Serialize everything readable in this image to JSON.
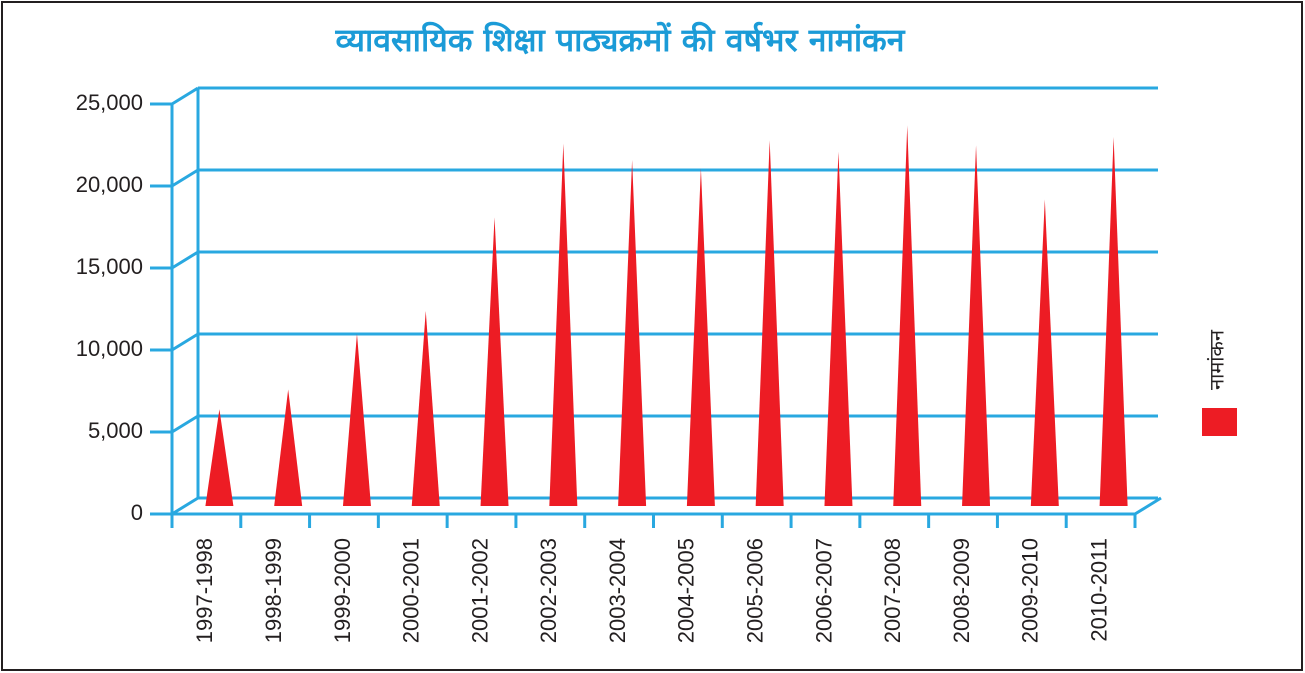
{
  "chart_data": {
    "type": "cone",
    "title": "व्यावसायिक शिक्षा पाठ्यक्रमों की वर्षभर नामांकन",
    "categories": [
      "1997-1998",
      "1998-1999",
      "1999-2000",
      "2000-2001",
      "2001-2002",
      "2002-2003",
      "2003-2004",
      "2004-2005",
      "2005-2006",
      "2006-2007",
      "2007-2008",
      "2008-2009",
      "2009-2010",
      "2010-2011"
    ],
    "series": [
      {
        "name": "नामांकन",
        "color": "#ed1c24",
        "values": [
          5900,
          7100,
          10500,
          11900,
          17600,
          22100,
          21100,
          20600,
          22300,
          21600,
          23200,
          22000,
          18700,
          22500
        ]
      }
    ],
    "ylim": [
      0,
      25000
    ],
    "yticks": [
      0,
      {
        "value": 5000,
        "label": "5,000"
      },
      {
        "value": 10000,
        "label": "10,000"
      },
      {
        "value": 15000,
        "label": "15,000"
      },
      {
        "value": 20000,
        "label": "20,000"
      },
      {
        "value": 25000,
        "label": "25,000"
      }
    ],
    "grid": true,
    "grid_color": "#29a8e0",
    "legend": "right"
  }
}
